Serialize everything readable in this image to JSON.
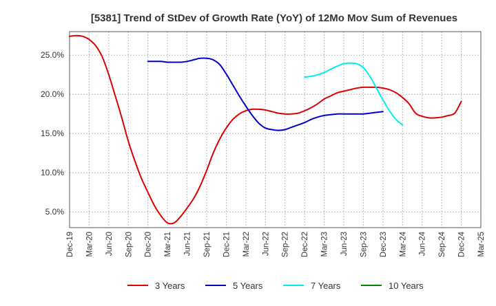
{
  "chart_data": {
    "type": "line",
    "title": "[5381]  Trend of StDev of Growth Rate (YoY) of 12Mo Mov Sum of Revenues",
    "xlabel": "",
    "ylabel": "",
    "x_range": [
      "Dec-19",
      "Mar-25"
    ],
    "ylim": [
      3.0,
      28.0
    ],
    "y_ticks": [
      5.0,
      10.0,
      15.0,
      20.0,
      25.0
    ],
    "y_tick_labels": [
      "5.0%",
      "10.0%",
      "15.0%",
      "20.0%",
      "25.0%"
    ],
    "x_tick_labels": [
      "Dec-19",
      "Mar-20",
      "Jun-20",
      "Sep-20",
      "Dec-20",
      "Mar-21",
      "Jun-21",
      "Sep-21",
      "Dec-21",
      "Mar-22",
      "Jun-22",
      "Sep-22",
      "Dec-22",
      "Mar-23",
      "Jun-23",
      "Sep-23",
      "Dec-23",
      "Mar-24",
      "Jun-24",
      "Sep-24",
      "Dec-24",
      "Mar-25"
    ],
    "grid": true,
    "legend_position": "bottom",
    "series": [
      {
        "name": "3 Years",
        "color": "#dd0000",
        "points": [
          [
            "Dec-19",
            27.4
          ],
          [
            "Jan-20",
            27.5
          ],
          [
            "Feb-20",
            27.4
          ],
          [
            "Mar-20",
            27.0
          ],
          [
            "Apr-20",
            26.2
          ],
          [
            "May-20",
            24.8
          ],
          [
            "Jun-20",
            22.5
          ],
          [
            "Jul-20",
            19.8
          ],
          [
            "Aug-20",
            17.0
          ],
          [
            "Sep-20",
            14.0
          ],
          [
            "Oct-20",
            11.5
          ],
          [
            "Nov-20",
            9.3
          ],
          [
            "Dec-20",
            7.5
          ],
          [
            "Jan-21",
            5.8
          ],
          [
            "Feb-21",
            4.5
          ],
          [
            "Mar-21",
            3.6
          ],
          [
            "Apr-21",
            3.6
          ],
          [
            "May-21",
            4.4
          ],
          [
            "Jun-21",
            5.5
          ],
          [
            "Jul-21",
            6.7
          ],
          [
            "Aug-21",
            8.3
          ],
          [
            "Sep-21",
            10.3
          ],
          [
            "Oct-21",
            12.5
          ],
          [
            "Nov-21",
            14.3
          ],
          [
            "Dec-21",
            15.7
          ],
          [
            "Jan-22",
            16.8
          ],
          [
            "Feb-22",
            17.5
          ],
          [
            "Mar-22",
            17.9
          ],
          [
            "Apr-22",
            18.1
          ],
          [
            "May-22",
            18.1
          ],
          [
            "Jun-22",
            18.0
          ],
          [
            "Jul-22",
            17.8
          ],
          [
            "Aug-22",
            17.6
          ],
          [
            "Sep-22",
            17.5
          ],
          [
            "Oct-22",
            17.5
          ],
          [
            "Nov-22",
            17.6
          ],
          [
            "Dec-22",
            17.9
          ],
          [
            "Jan-23",
            18.3
          ],
          [
            "Feb-23",
            18.8
          ],
          [
            "Mar-23",
            19.4
          ],
          [
            "Apr-23",
            19.8
          ],
          [
            "May-23",
            20.2
          ],
          [
            "Jun-23",
            20.4
          ],
          [
            "Jul-23",
            20.6
          ],
          [
            "Aug-23",
            20.8
          ],
          [
            "Sep-23",
            20.9
          ],
          [
            "Oct-23",
            20.9
          ],
          [
            "Nov-23",
            20.9
          ],
          [
            "Dec-23",
            20.8
          ],
          [
            "Jan-24",
            20.6
          ],
          [
            "Feb-24",
            20.2
          ],
          [
            "Mar-24",
            19.6
          ],
          [
            "Apr-24",
            18.8
          ],
          [
            "May-24",
            17.6
          ],
          [
            "Jun-24",
            17.2
          ],
          [
            "Jul-24",
            17.0
          ],
          [
            "Aug-24",
            17.0
          ],
          [
            "Sep-24",
            17.1
          ],
          [
            "Oct-24",
            17.3
          ],
          [
            "Nov-24",
            17.6
          ],
          [
            "Dec-24",
            19.1
          ]
        ]
      },
      {
        "name": "5 Years",
        "color": "#0000cc",
        "points": [
          [
            "Dec-20",
            24.2
          ],
          [
            "Jan-21",
            24.2
          ],
          [
            "Feb-21",
            24.2
          ],
          [
            "Mar-21",
            24.1
          ],
          [
            "Apr-21",
            24.1
          ],
          [
            "May-21",
            24.1
          ],
          [
            "Jun-21",
            24.2
          ],
          [
            "Jul-21",
            24.4
          ],
          [
            "Aug-21",
            24.6
          ],
          [
            "Sep-21",
            24.6
          ],
          [
            "Oct-21",
            24.4
          ],
          [
            "Nov-21",
            23.8
          ],
          [
            "Dec-21",
            22.6
          ],
          [
            "Jan-22",
            21.2
          ],
          [
            "Feb-22",
            19.8
          ],
          [
            "Mar-22",
            18.5
          ],
          [
            "Apr-22",
            17.3
          ],
          [
            "May-22",
            16.3
          ],
          [
            "Jun-22",
            15.7
          ],
          [
            "Jul-22",
            15.5
          ],
          [
            "Aug-22",
            15.4
          ],
          [
            "Sep-22",
            15.5
          ],
          [
            "Oct-22",
            15.8
          ],
          [
            "Nov-22",
            16.1
          ],
          [
            "Dec-22",
            16.4
          ],
          [
            "Jan-23",
            16.8
          ],
          [
            "Feb-23",
            17.1
          ],
          [
            "Mar-23",
            17.3
          ],
          [
            "Apr-23",
            17.4
          ],
          [
            "May-23",
            17.5
          ],
          [
            "Jun-23",
            17.5
          ],
          [
            "Jul-23",
            17.5
          ],
          [
            "Aug-23",
            17.5
          ],
          [
            "Sep-23",
            17.5
          ],
          [
            "Oct-23",
            17.6
          ],
          [
            "Nov-23",
            17.7
          ],
          [
            "Dec-23",
            17.8
          ]
        ]
      },
      {
        "name": "7 Years",
        "color": "#00eeee",
        "points": [
          [
            "Dec-22",
            22.2
          ],
          [
            "Jan-23",
            22.3
          ],
          [
            "Feb-23",
            22.5
          ],
          [
            "Mar-23",
            22.8
          ],
          [
            "Apr-23",
            23.2
          ],
          [
            "May-23",
            23.6
          ],
          [
            "Jun-23",
            23.9
          ],
          [
            "Jul-23",
            24.0
          ],
          [
            "Aug-23",
            23.9
          ],
          [
            "Sep-23",
            23.4
          ],
          [
            "Oct-23",
            22.3
          ],
          [
            "Nov-23",
            20.8
          ],
          [
            "Dec-23",
            19.3
          ],
          [
            "Jan-24",
            17.9
          ],
          [
            "Feb-24",
            16.8
          ],
          [
            "Mar-24",
            16.1
          ]
        ]
      },
      {
        "name": "10 Years",
        "color": "#008800",
        "points": []
      }
    ]
  }
}
